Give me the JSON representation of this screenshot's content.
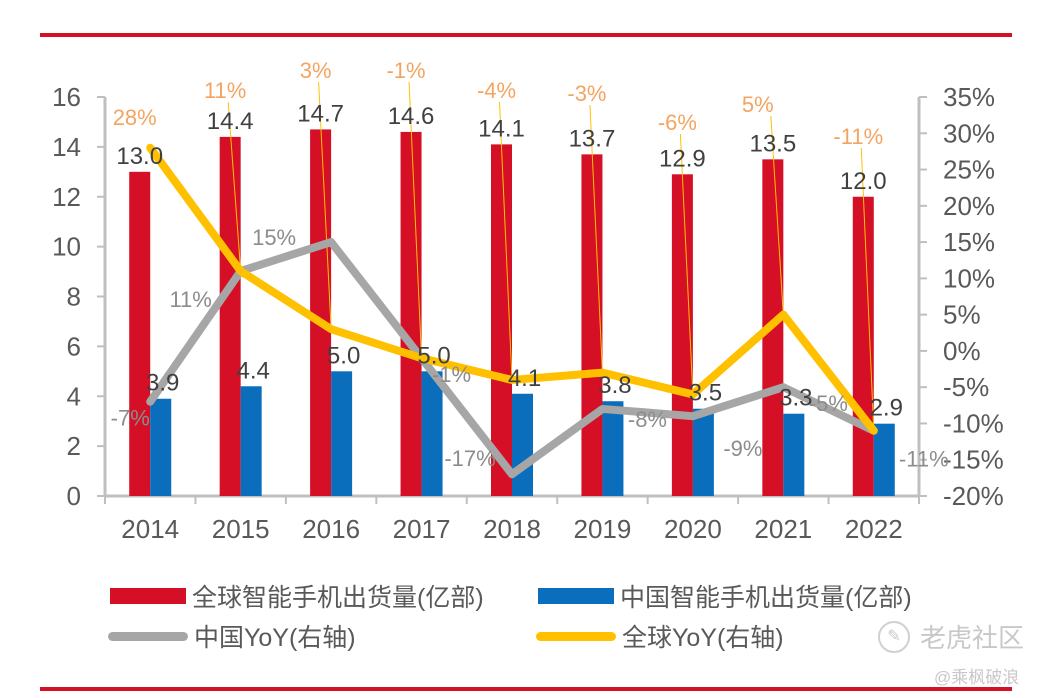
{
  "chart_data": {
    "type": "bar",
    "title": "",
    "categories": [
      "2014",
      "2015",
      "2016",
      "2017",
      "2018",
      "2019",
      "2020",
      "2021",
      "2022"
    ],
    "series": [
      {
        "name": "全球智能手机出货量(亿部)",
        "type": "bar",
        "axis": "left",
        "color": "#d50f25",
        "values": [
          13.0,
          14.4,
          14.7,
          14.6,
          14.1,
          13.7,
          12.9,
          13.5,
          12.0
        ],
        "labels": [
          "13.0",
          "14.4",
          "14.7",
          "14.6",
          "14.1",
          "13.7",
          "12.9",
          "13.5",
          "12.0"
        ]
      },
      {
        "name": "中国智能手机出货量(亿部)",
        "type": "bar",
        "axis": "left",
        "color": "#0a6ebd",
        "values": [
          3.9,
          4.4,
          5.0,
          5.0,
          4.1,
          3.8,
          3.5,
          3.3,
          2.9
        ],
        "labels": [
          "3.9",
          "4.4",
          "5.0",
          "5.0",
          "4.1",
          "3.8",
          "3.5",
          "3.3",
          "2.9"
        ]
      },
      {
        "name": "中国YoY(右轴)",
        "type": "line",
        "axis": "right",
        "color": "#a6a6a6",
        "values": [
          -7,
          11,
          15,
          -1,
          -17,
          -8,
          -9,
          -5,
          -11
        ],
        "labels": [
          "-7%",
          "11%",
          "15%",
          "-1%",
          "-17%",
          "-8%",
          "-9%",
          "-5%",
          "-11%"
        ]
      },
      {
        "name": "全球YoY(右轴)",
        "type": "line",
        "axis": "right",
        "color": "#ffc000",
        "values": [
          28,
          11,
          3,
          -1,
          -4,
          -3,
          -6,
          5,
          -11
        ],
        "labels": [
          "28%",
          "11%",
          "3%",
          "-1%",
          "-4%",
          "-3%",
          "-6%",
          "5%",
          "-11%"
        ]
      }
    ],
    "left_axis": {
      "min": 0,
      "max": 16,
      "step": 2,
      "ticks": [
        "0",
        "2",
        "4",
        "6",
        "8",
        "10",
        "12",
        "14",
        "16"
      ]
    },
    "right_axis": {
      "min": -20,
      "max": 35,
      "step": 5,
      "unit": "%",
      "ticks": [
        "-20%",
        "-15%",
        "-10%",
        "-5%",
        "0%",
        "5%",
        "10%",
        "15%",
        "20%",
        "25%",
        "30%",
        "35%"
      ]
    },
    "xlabel": "",
    "ylabel": "",
    "grid": false,
    "legend_position": "bottom"
  },
  "legend": {
    "items": [
      {
        "label": "全球智能手机出货量(亿部)",
        "color": "#d50f25",
        "kind": "bar"
      },
      {
        "label": "中国智能手机出货量(亿部)",
        "color": "#0a6ebd",
        "kind": "bar"
      },
      {
        "label": "中国YoY(右轴)",
        "color": "#a6a6a6",
        "kind": "line"
      },
      {
        "label": "全球YoY(右轴)",
        "color": "#ffc000",
        "kind": "line"
      }
    ]
  },
  "watermark": {
    "logo_text": "老虎社区",
    "author": "@乘枫破浪"
  }
}
